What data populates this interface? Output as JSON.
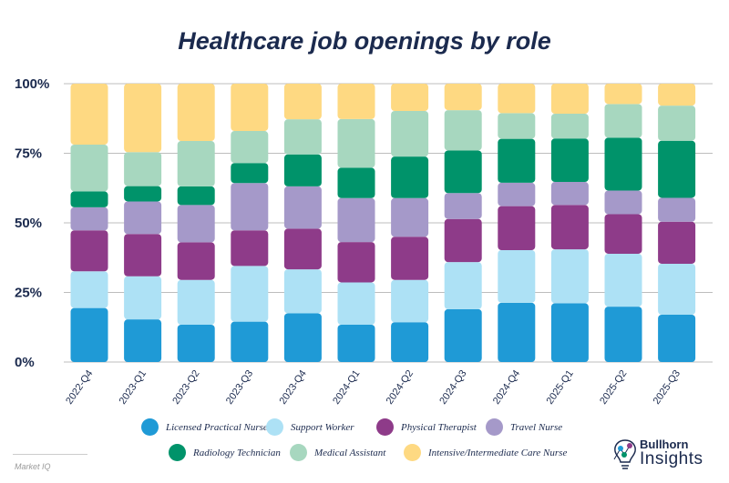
{
  "chart_data": {
    "type": "bar",
    "stacked": true,
    "normalized": true,
    "title": "Healthcare job openings by role",
    "xlabel": "",
    "ylabel": "",
    "ylim": [
      0,
      100
    ],
    "yticks": [
      "0%",
      "25%",
      "50%",
      "75%",
      "100%"
    ],
    "grid": true,
    "legend_position": "bottom",
    "categories": [
      "2022-Q4",
      "2023-Q1",
      "2023-Q2",
      "2023-Q3",
      "2023-Q4",
      "2024-Q1",
      "2024-Q2",
      "2024-Q3",
      "2024-Q4",
      "2025-Q1",
      "2025-Q2",
      "2025-Q3"
    ],
    "series": [
      {
        "name": "Licensed Practical Nurse",
        "color": "#1f9ad6",
        "values": [
          19.4,
          15.3,
          13.4,
          14.5,
          17.5,
          13.4,
          14.3,
          19.0,
          21.3,
          21.1,
          19.9,
          17.0
        ]
      },
      {
        "name": "Support Worker",
        "color": "#ade1f5",
        "values": [
          13.2,
          15.5,
          16.1,
          20.0,
          15.8,
          15.2,
          15.2,
          16.9,
          18.9,
          19.4,
          19.0,
          18.3
        ]
      },
      {
        "name": "Physical Therapist",
        "color": "#8e3b89",
        "values": [
          14.7,
          15.2,
          13.5,
          12.8,
          14.6,
          14.5,
          15.5,
          15.5,
          15.8,
          15.9,
          14.2,
          15.1
        ]
      },
      {
        "name": "Travel Nurse",
        "color": "#a599c9",
        "values": [
          8.3,
          11.7,
          13.4,
          17.0,
          15.2,
          15.8,
          13.9,
          9.3,
          8.4,
          8.3,
          8.5,
          8.6
        ]
      },
      {
        "name": "Radiology Technician",
        "color": "#00936a",
        "values": [
          5.7,
          5.5,
          6.7,
          7.2,
          11.5,
          10.9,
          14.9,
          15.3,
          15.8,
          15.6,
          19.0,
          20.5
        ]
      },
      {
        "name": "Medical Assistant",
        "color": "#a7d7bf",
        "values": [
          16.8,
          12.2,
          16.3,
          11.5,
          12.6,
          17.5,
          16.4,
          14.5,
          9.2,
          8.9,
          12.1,
          12.6
        ]
      },
      {
        "name": "Intensive/Intermediate Care Nurse",
        "color": "#fed982",
        "values": [
          21.9,
          24.6,
          20.6,
          17.0,
          12.8,
          12.7,
          9.8,
          9.5,
          10.6,
          10.8,
          7.3,
          7.9
        ]
      }
    ]
  },
  "footer": {
    "source": "Market IQ"
  },
  "logo": {
    "line1": "Bullhorn",
    "line2": "Insights"
  }
}
